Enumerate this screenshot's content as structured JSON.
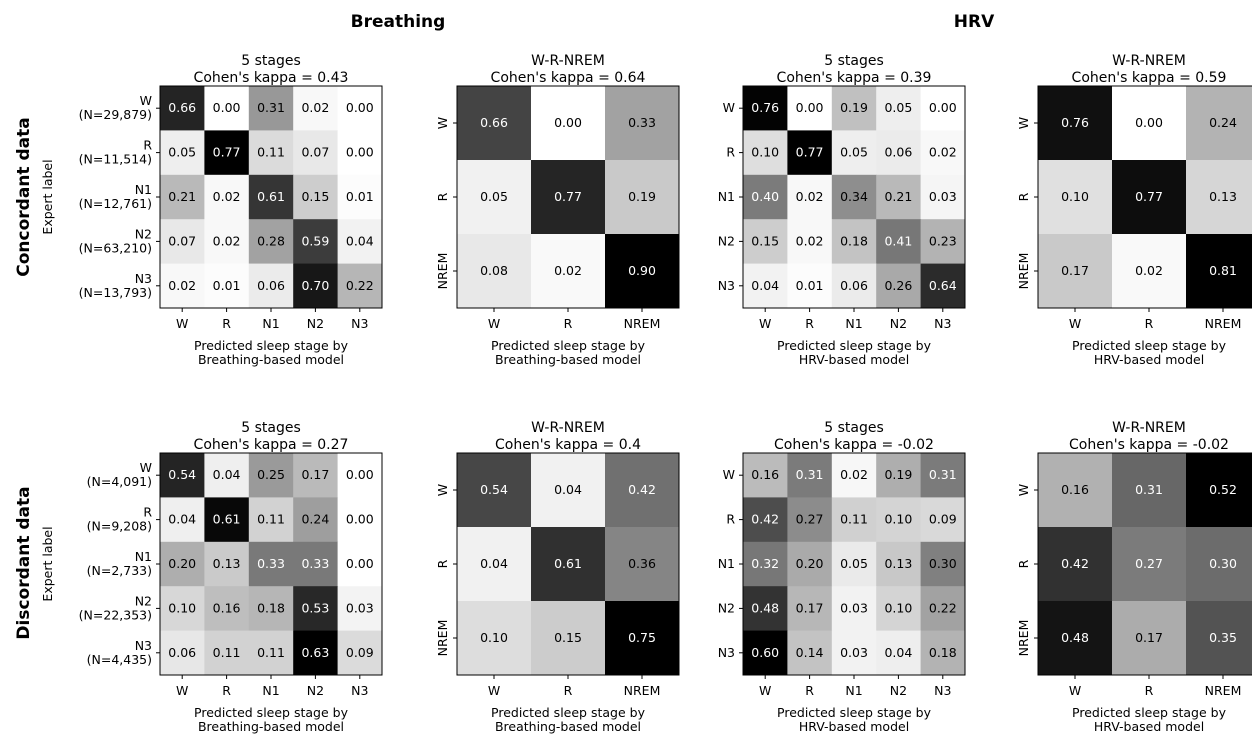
{
  "figure": {
    "column_titles": [
      "Breathing",
      "HRV"
    ],
    "row_titles": [
      "Concordant data",
      "Discordant data"
    ]
  },
  "chart_data": [
    {
      "type": "heatmap",
      "colormap": "greys",
      "title_lines": [
        "5 stages",
        "Cohen's kappa = 0.43"
      ],
      "xlabel_lines": [
        "Predicted sleep stage by",
        "Breathing-based model"
      ],
      "ylabel": "Expert label",
      "x_categories": [
        "W",
        "R",
        "N1",
        "N2",
        "N3"
      ],
      "y_categories": [
        [
          "W",
          "(N=29,879)"
        ],
        [
          "R",
          "(N=11,514)"
        ],
        [
          "N1",
          "(N=12,761)"
        ],
        [
          "N2",
          "(N=63,210)"
        ],
        [
          "N3",
          "(N=13,793)"
        ]
      ],
      "values": [
        [
          0.66,
          0.0,
          0.31,
          0.02,
          0.0
        ],
        [
          0.05,
          0.77,
          0.11,
          0.07,
          0.0
        ],
        [
          0.21,
          0.02,
          0.61,
          0.15,
          0.01
        ],
        [
          0.07,
          0.02,
          0.28,
          0.59,
          0.04
        ],
        [
          0.02,
          0.01,
          0.06,
          0.7,
          0.22
        ]
      ]
    },
    {
      "type": "heatmap",
      "colormap": "greys",
      "title_lines": [
        "W-R-NREM",
        "Cohen's kappa = 0.64"
      ],
      "xlabel_lines": [
        "Predicted sleep stage by",
        "Breathing-based model"
      ],
      "ylabel": "",
      "x_categories": [
        "W",
        "R",
        "NREM"
      ],
      "y_categories": [
        [
          "W"
        ],
        [
          "R"
        ],
        [
          "NREM"
        ]
      ],
      "values": [
        [
          0.66,
          0.0,
          0.33
        ],
        [
          0.05,
          0.77,
          0.19
        ],
        [
          0.08,
          0.02,
          0.9
        ]
      ]
    },
    {
      "type": "heatmap",
      "colormap": "greys",
      "title_lines": [
        "5 stages",
        "Cohen's kappa = 0.39"
      ],
      "xlabel_lines": [
        "Predicted sleep stage by",
        "HRV-based model"
      ],
      "ylabel": "",
      "x_categories": [
        "W",
        "R",
        "N1",
        "N2",
        "N3"
      ],
      "y_categories": [
        [
          "W"
        ],
        [
          "R"
        ],
        [
          "N1"
        ],
        [
          "N2"
        ],
        [
          "N3"
        ]
      ],
      "values": [
        [
          0.76,
          0.0,
          0.19,
          0.05,
          0.0
        ],
        [
          0.1,
          0.77,
          0.05,
          0.06,
          0.02
        ],
        [
          0.4,
          0.02,
          0.34,
          0.21,
          0.03
        ],
        [
          0.15,
          0.02,
          0.18,
          0.41,
          0.23
        ],
        [
          0.04,
          0.01,
          0.06,
          0.26,
          0.64
        ]
      ]
    },
    {
      "type": "heatmap",
      "colormap": "greys",
      "title_lines": [
        "W-R-NREM",
        "Cohen's kappa = 0.59"
      ],
      "xlabel_lines": [
        "Predicted sleep stage by",
        "HRV-based model"
      ],
      "ylabel": "",
      "x_categories": [
        "W",
        "R",
        "NREM"
      ],
      "y_categories": [
        [
          "W"
        ],
        [
          "R"
        ],
        [
          "NREM"
        ]
      ],
      "values": [
        [
          0.76,
          0.0,
          0.24
        ],
        [
          0.1,
          0.77,
          0.13
        ],
        [
          0.17,
          0.02,
          0.81
        ]
      ]
    },
    {
      "type": "heatmap",
      "colormap": "greys",
      "title_lines": [
        "5 stages",
        "Cohen's kappa = 0.27"
      ],
      "xlabel_lines": [
        "Predicted sleep stage by",
        "Breathing-based model"
      ],
      "ylabel": "Expert label",
      "x_categories": [
        "W",
        "R",
        "N1",
        "N2",
        "N3"
      ],
      "y_categories": [
        [
          "W",
          "(N=4,091)"
        ],
        [
          "R",
          "(N=9,208)"
        ],
        [
          "N1",
          "(N=2,733)"
        ],
        [
          "N2",
          "(N=22,353)"
        ],
        [
          "N3",
          "(N=4,435)"
        ]
      ],
      "values": [
        [
          0.54,
          0.04,
          0.25,
          0.17,
          0.0
        ],
        [
          0.04,
          0.61,
          0.11,
          0.24,
          0.0
        ],
        [
          0.2,
          0.13,
          0.33,
          0.33,
          0.0
        ],
        [
          0.1,
          0.16,
          0.18,
          0.53,
          0.03
        ],
        [
          0.06,
          0.11,
          0.11,
          0.63,
          0.09
        ]
      ]
    },
    {
      "type": "heatmap",
      "colormap": "greys",
      "title_lines": [
        "W-R-NREM",
        "Cohen's kappa = 0.4"
      ],
      "xlabel_lines": [
        "Predicted sleep stage by",
        "Breathing-based model"
      ],
      "ylabel": "",
      "x_categories": [
        "W",
        "R",
        "NREM"
      ],
      "y_categories": [
        [
          "W"
        ],
        [
          "R"
        ],
        [
          "NREM"
        ]
      ],
      "values": [
        [
          0.54,
          0.04,
          0.42
        ],
        [
          0.04,
          0.61,
          0.36
        ],
        [
          0.1,
          0.15,
          0.75
        ]
      ]
    },
    {
      "type": "heatmap",
      "colormap": "greys",
      "title_lines": [
        "5 stages",
        "Cohen's kappa = -0.02"
      ],
      "xlabel_lines": [
        "Predicted sleep stage by",
        "HRV-based model"
      ],
      "ylabel": "",
      "x_categories": [
        "W",
        "R",
        "N1",
        "N2",
        "N3"
      ],
      "y_categories": [
        [
          "W"
        ],
        [
          "R"
        ],
        [
          "N1"
        ],
        [
          "N2"
        ],
        [
          "N3"
        ]
      ],
      "values": [
        [
          0.16,
          0.31,
          0.02,
          0.19,
          0.31
        ],
        [
          0.42,
          0.27,
          0.11,
          0.1,
          0.09
        ],
        [
          0.32,
          0.2,
          0.05,
          0.13,
          0.3
        ],
        [
          0.48,
          0.17,
          0.03,
          0.1,
          0.22
        ],
        [
          0.6,
          0.14,
          0.03,
          0.04,
          0.18
        ]
      ]
    },
    {
      "type": "heatmap",
      "colormap": "greys",
      "title_lines": [
        "W-R-NREM",
        "Cohen's kappa = -0.02"
      ],
      "xlabel_lines": [
        "Predicted sleep stage by",
        "HRV-based model"
      ],
      "ylabel": "",
      "x_categories": [
        "W",
        "R",
        "NREM"
      ],
      "y_categories": [
        [
          "W"
        ],
        [
          "R"
        ],
        [
          "NREM"
        ]
      ],
      "values": [
        [
          0.16,
          0.31,
          0.52
        ],
        [
          0.42,
          0.27,
          0.3
        ],
        [
          0.48,
          0.17,
          0.35
        ]
      ]
    }
  ]
}
